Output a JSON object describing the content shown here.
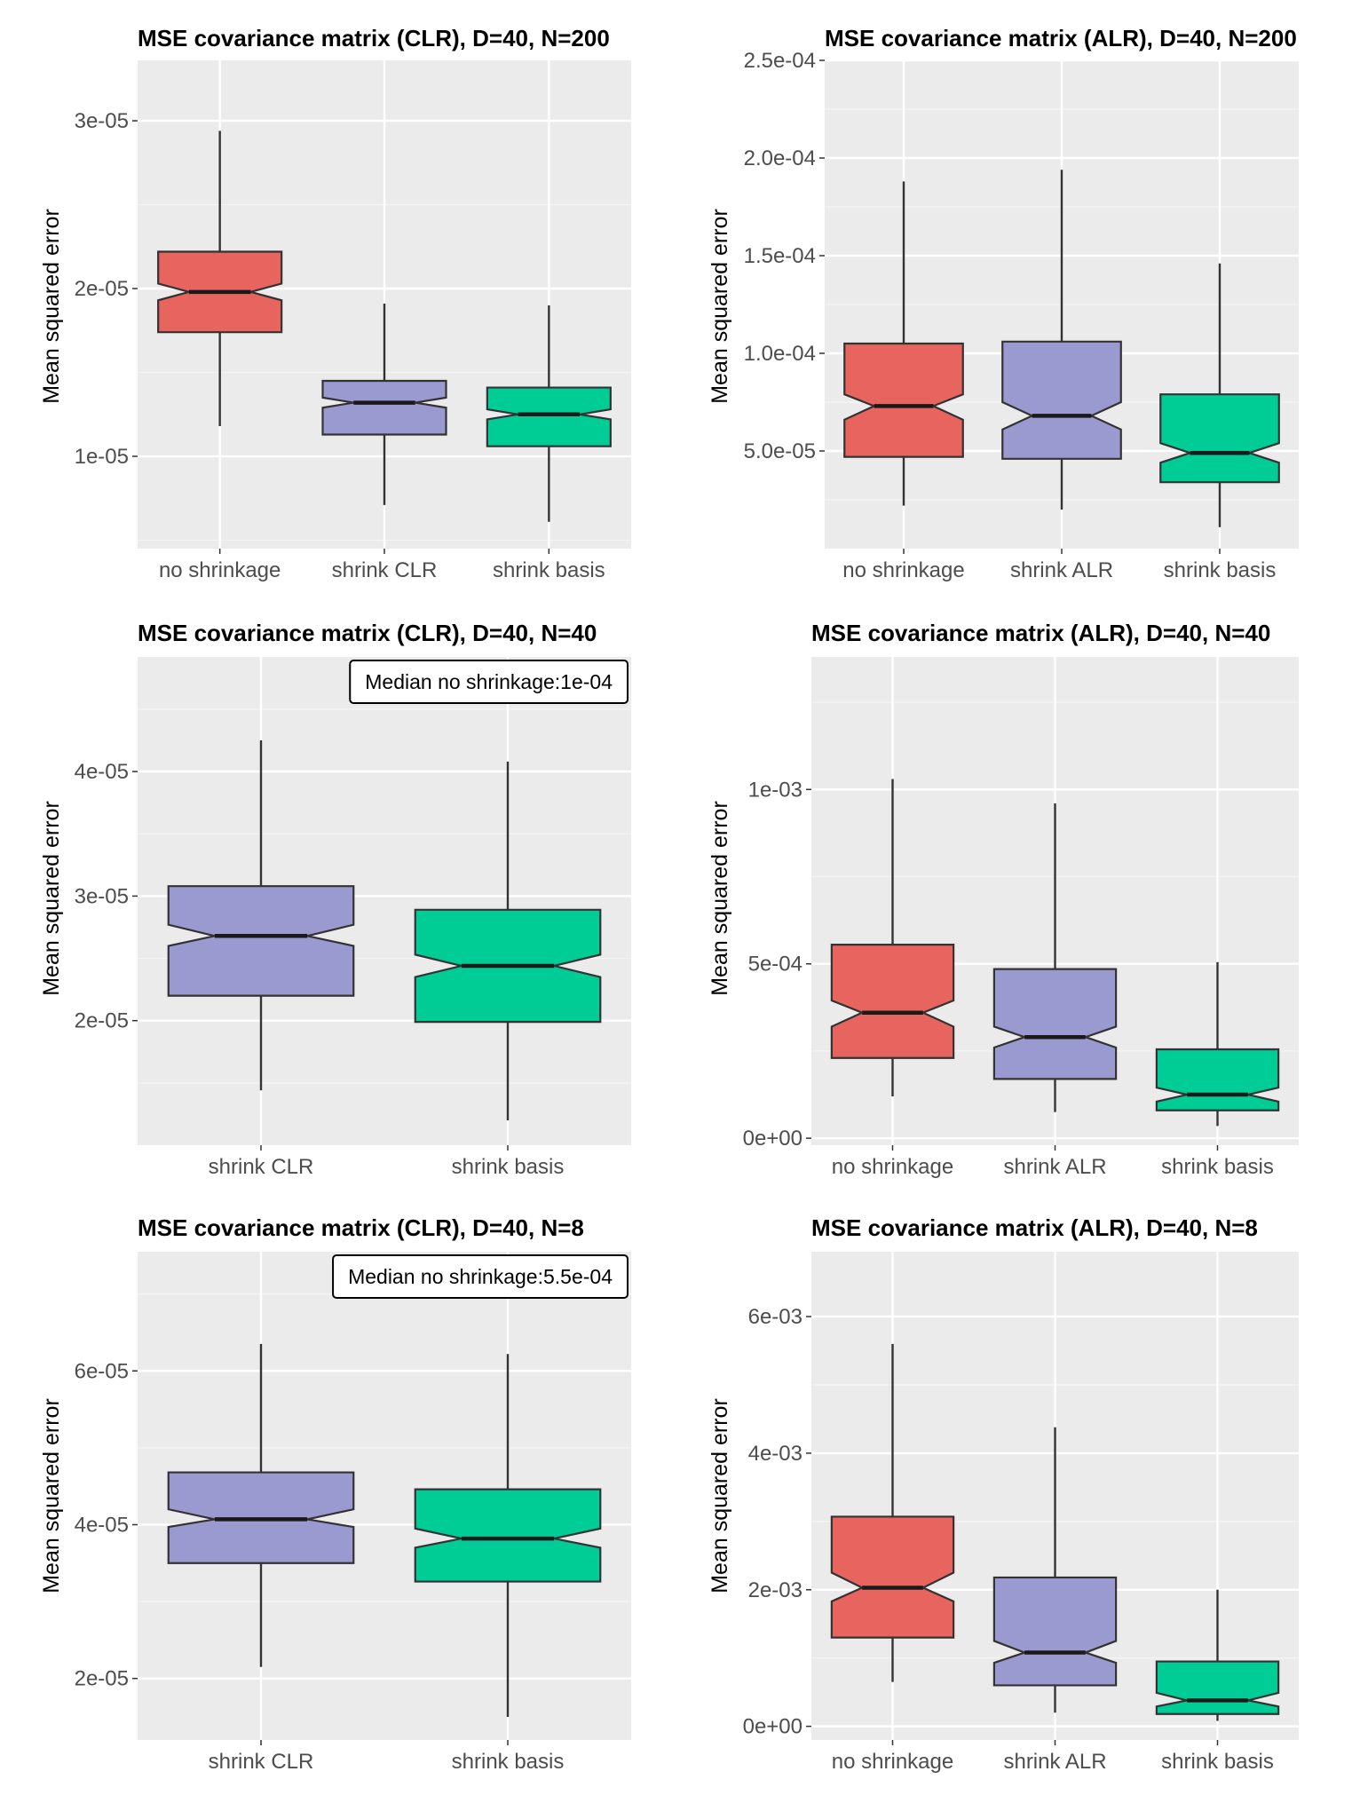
{
  "colors": {
    "panel_bg": "#ebebeb",
    "grid_major": "#ffffff",
    "grid_minor": "#f5f5f5",
    "no_shrinkage": "#e8645f",
    "shrink_clr": "#9a9ad0",
    "shrink_alr": "#9a9ad0",
    "shrink_basis": "#00cc96",
    "outline": "#333333"
  },
  "chart_data": [
    {
      "type": "boxplot",
      "title": "MSE covariance matrix (CLR), D=40, N=200",
      "ylabel": "Mean squared error",
      "ylim": [
        4.5e-06,
        3.36e-05
      ],
      "yticks": [
        1e-05,
        2e-05,
        3e-05
      ],
      "ytick_labels": [
        "1e-05",
        "2e-05",
        "3e-05"
      ],
      "categories": [
        "no shrinkage",
        "shrink CLR",
        "shrink basis"
      ],
      "series": [
        {
          "name": "no shrinkage",
          "color": "#e8645f",
          "whisker_low": 1.18e-05,
          "q1": 1.74e-05,
          "median": 1.98e-05,
          "q3": 2.22e-05,
          "whisker_high": 2.94e-05,
          "notch_low": 1.93e-05,
          "notch_high": 2.03e-05
        },
        {
          "name": "shrink CLR",
          "color": "#9a9ad0",
          "whisker_low": 7.1e-06,
          "q1": 1.13e-05,
          "median": 1.32e-05,
          "q3": 1.45e-05,
          "whisker_high": 1.91e-05,
          "notch_low": 1.29e-05,
          "notch_high": 1.35e-05
        },
        {
          "name": "shrink basis",
          "color": "#00cc96",
          "whisker_low": 6.1e-06,
          "q1": 1.06e-05,
          "median": 1.25e-05,
          "q3": 1.41e-05,
          "whisker_high": 1.9e-05,
          "notch_low": 1.22e-05,
          "notch_high": 1.28e-05
        }
      ]
    },
    {
      "type": "boxplot",
      "title": "MSE covariance matrix (ALR), D=40, N=200",
      "ylabel": "Mean squared error",
      "ylim": [
        0,
        0.00025
      ],
      "yticks": [
        5e-05,
        0.0001,
        0.00015,
        0.0002,
        0.00025
      ],
      "ytick_labels": [
        "5.0e-05",
        "1.0e-04",
        "1.5e-04",
        "2.0e-04",
        "2.5e-04"
      ],
      "categories": [
        "no shrinkage",
        "shrink ALR",
        "shrink basis"
      ],
      "series": [
        {
          "name": "no shrinkage",
          "color": "#e8645f",
          "whisker_low": 2.2e-05,
          "q1": 4.7e-05,
          "median": 7.3e-05,
          "q3": 0.000105,
          "whisker_high": 0.000188,
          "notch_low": 6.6e-05,
          "notch_high": 7.9e-05
        },
        {
          "name": "shrink ALR",
          "color": "#9a9ad0",
          "whisker_low": 2e-05,
          "q1": 4.6e-05,
          "median": 6.8e-05,
          "q3": 0.000106,
          "whisker_high": 0.000194,
          "notch_low": 6.1e-05,
          "notch_high": 7.5e-05
        },
        {
          "name": "shrink basis",
          "color": "#00cc96",
          "whisker_low": 1.1e-05,
          "q1": 3.4e-05,
          "median": 4.9e-05,
          "q3": 7.9e-05,
          "whisker_high": 0.000146,
          "notch_low": 4.4e-05,
          "notch_high": 5.4e-05
        }
      ]
    },
    {
      "type": "boxplot",
      "title": "MSE covariance matrix (CLR), D=40, N=40",
      "ylabel": "Mean squared error",
      "ylim": [
        1e-05,
        4.92e-05
      ],
      "yticks": [
        2e-05,
        3e-05,
        4e-05
      ],
      "ytick_labels": [
        "2e-05",
        "3e-05",
        "4e-05"
      ],
      "categories": [
        "shrink CLR",
        "shrink basis"
      ],
      "annotation": "Median no shrinkage:1e-04",
      "series": [
        {
          "name": "shrink CLR",
          "color": "#9a9ad0",
          "whisker_low": 1.44e-05,
          "q1": 2.2e-05,
          "median": 2.68e-05,
          "q3": 3.08e-05,
          "whisker_high": 4.25e-05,
          "notch_low": 2.6e-05,
          "notch_high": 2.77e-05
        },
        {
          "name": "shrink basis",
          "color": "#00cc96",
          "whisker_low": 1.2e-05,
          "q1": 1.99e-05,
          "median": 2.44e-05,
          "q3": 2.89e-05,
          "whisker_high": 4.08e-05,
          "notch_low": 2.35e-05,
          "notch_high": 2.53e-05
        }
      ]
    },
    {
      "type": "boxplot",
      "title": "MSE covariance matrix (ALR), D=40, N=40",
      "ylabel": "Mean squared error",
      "ylim": [
        -2e-05,
        0.00138
      ],
      "yticks": [
        0,
        0.0005,
        0.001
      ],
      "ytick_labels": [
        "0e+00",
        "5e-04",
        "1e-03"
      ],
      "categories": [
        "no shrinkage",
        "shrink ALR",
        "shrink basis"
      ],
      "series": [
        {
          "name": "no shrinkage",
          "color": "#e8645f",
          "whisker_low": 0.00012,
          "q1": 0.00023,
          "median": 0.00036,
          "q3": 0.000555,
          "whisker_high": 0.00103,
          "notch_low": 0.00032,
          "notch_high": 0.000395
        },
        {
          "name": "shrink ALR",
          "color": "#9a9ad0",
          "whisker_low": 7.5e-05,
          "q1": 0.00017,
          "median": 0.00029,
          "q3": 0.000485,
          "whisker_high": 0.00096,
          "notch_low": 0.00026,
          "notch_high": 0.00032
        },
        {
          "name": "shrink basis",
          "color": "#00cc96",
          "whisker_low": 3.5e-05,
          "q1": 8e-05,
          "median": 0.000125,
          "q3": 0.000255,
          "whisker_high": 0.000505,
          "notch_low": 0.000105,
          "notch_high": 0.000145
        }
      ]
    },
    {
      "type": "boxplot",
      "title": "MSE covariance matrix (CLR), D=40, N=8",
      "ylabel": "Mean squared error",
      "ylim": [
        1.2e-05,
        7.55e-05
      ],
      "yticks": [
        2e-05,
        4e-05,
        6e-05
      ],
      "ytick_labels": [
        "2e-05",
        "4e-05",
        "6e-05"
      ],
      "categories": [
        "shrink CLR",
        "shrink basis"
      ],
      "annotation": "Median no shrinkage:5.5e-04",
      "series": [
        {
          "name": "shrink CLR",
          "color": "#9a9ad0",
          "whisker_low": 2.15e-05,
          "q1": 3.5e-05,
          "median": 4.07e-05,
          "q3": 4.68e-05,
          "whisker_high": 6.35e-05,
          "notch_low": 3.97e-05,
          "notch_high": 4.2e-05
        },
        {
          "name": "shrink basis",
          "color": "#00cc96",
          "whisker_low": 1.5e-05,
          "q1": 3.26e-05,
          "median": 3.82e-05,
          "q3": 4.46e-05,
          "whisker_high": 6.22e-05,
          "notch_low": 3.7e-05,
          "notch_high": 3.95e-05
        }
      ]
    },
    {
      "type": "boxplot",
      "title": "MSE covariance matrix (ALR), D=40, N=8",
      "ylabel": "Mean squared error",
      "ylim": [
        -0.0002,
        0.00695
      ],
      "yticks": [
        0,
        0.002,
        0.004,
        0.006
      ],
      "ytick_labels": [
        "0e+00",
        "2e-03",
        "4e-03",
        "6e-03"
      ],
      "categories": [
        "no shrinkage",
        "shrink ALR",
        "shrink basis"
      ],
      "series": [
        {
          "name": "no shrinkage",
          "color": "#e8645f",
          "whisker_low": 0.00065,
          "q1": 0.0013,
          "median": 0.00203,
          "q3": 0.00307,
          "whisker_high": 0.0056,
          "notch_low": 0.00183,
          "notch_high": 0.00225
        },
        {
          "name": "shrink ALR",
          "color": "#9a9ad0",
          "whisker_low": 0.0002,
          "q1": 0.0006,
          "median": 0.00108,
          "q3": 0.00218,
          "whisker_high": 0.00438,
          "notch_low": 0.00093,
          "notch_high": 0.00125
        },
        {
          "name": "shrink basis",
          "color": "#00cc96",
          "whisker_low": 8e-05,
          "q1": 0.00018,
          "median": 0.00038,
          "q3": 0.00095,
          "whisker_high": 0.002,
          "notch_low": 0.00029,
          "notch_high": 0.00049
        }
      ]
    }
  ]
}
